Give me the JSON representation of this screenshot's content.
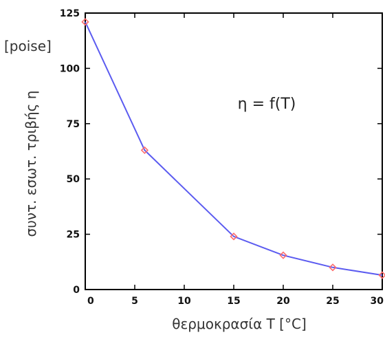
{
  "chart_data": {
    "type": "line",
    "xlabel": "θερμοκρασία  T  [°C]",
    "ylabel": "συντ. εσωτ. τριβής  η",
    "yunit": "[poise]",
    "annotation": "η = f(T)",
    "xlim": [
      0,
      30
    ],
    "ylim": [
      0,
      125
    ],
    "xticks": [
      "0",
      "5",
      "10",
      "15",
      "20",
      "25",
      "30"
    ],
    "yticks": [
      "0",
      "25",
      "50",
      "75",
      "100",
      "125"
    ],
    "grid": false,
    "colors": {
      "line": "#5b5bf0",
      "marker": "#ff6b6b",
      "frame": "#000000"
    },
    "series": [
      {
        "x": [
          0,
          6,
          15,
          20,
          25,
          30
        ],
        "y": [
          121,
          63,
          24,
          15.5,
          10,
          6.5
        ]
      }
    ]
  }
}
